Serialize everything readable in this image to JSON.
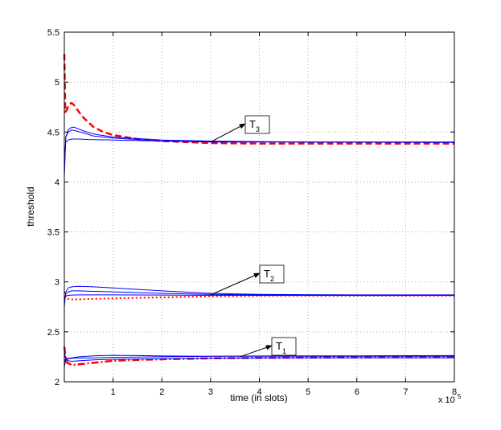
{
  "chart_data": {
    "type": "line",
    "title": "",
    "xlabel": "time (in slots)",
    "ylabel": "threshold",
    "x_multiplier_base": "x 10",
    "x_multiplier_exp": "5",
    "xlim": [
      0,
      8
    ],
    "ylim": [
      2,
      5.5
    ],
    "xticks": [
      "1",
      "2",
      "3",
      "4",
      "5",
      "6",
      "7",
      "8"
    ],
    "yticks": [
      "2",
      "2.5",
      "3",
      "3.5",
      "4",
      "4.5",
      "5",
      "5.5"
    ],
    "grid": true,
    "annotations": [
      {
        "main": "T",
        "sub": "3",
        "arrow_to": [
          3.0,
          4.4
        ]
      },
      {
        "main": "T",
        "sub": "2",
        "arrow_to": [
          3.0,
          2.87
        ]
      },
      {
        "main": "T",
        "sub": "1",
        "arrow_to": [
          3.6,
          2.25
        ]
      }
    ],
    "series": [
      {
        "color": "#ff0000",
        "style": "dashed",
        "width": 2.5,
        "x": [
          0.0,
          0.02,
          0.05,
          0.08,
          0.1,
          0.15,
          0.2,
          0.3,
          0.4,
          0.6,
          0.8,
          1.0,
          1.5,
          2.0,
          3.0,
          4.0,
          6.0,
          8.0
        ],
        "y": [
          5.28,
          4.7,
          4.72,
          4.76,
          4.78,
          4.79,
          4.77,
          4.7,
          4.64,
          4.55,
          4.5,
          4.47,
          4.43,
          4.41,
          4.39,
          4.385,
          4.385,
          4.385
        ]
      },
      {
        "color": "#0000ff",
        "style": "solid",
        "width": 1,
        "x": [
          0.0,
          0.03,
          0.08,
          0.12,
          0.18,
          0.25,
          0.4,
          0.6,
          1.0,
          2.0,
          3.0,
          5.0,
          8.0
        ],
        "y": [
          4.05,
          4.45,
          4.52,
          4.54,
          4.55,
          4.54,
          4.51,
          4.48,
          4.45,
          4.42,
          4.41,
          4.4,
          4.4
        ]
      },
      {
        "color": "#0000ff",
        "style": "solid",
        "width": 1,
        "x": [
          0.0,
          0.03,
          0.08,
          0.15,
          0.25,
          0.4,
          0.6,
          1.0,
          2.0,
          3.0,
          5.0,
          8.0
        ],
        "y": [
          4.1,
          4.45,
          4.5,
          4.52,
          4.51,
          4.49,
          4.46,
          4.44,
          4.41,
          4.405,
          4.4,
          4.4
        ]
      },
      {
        "color": "#0000ff",
        "style": "solid",
        "width": 1,
        "x": [
          0.0,
          0.03,
          0.08,
          0.15,
          0.3,
          0.5,
          1.0,
          2.0,
          3.0,
          5.0,
          8.0
        ],
        "y": [
          4.2,
          4.4,
          4.42,
          4.43,
          4.43,
          4.425,
          4.42,
          4.41,
          4.4,
          4.4,
          4.395
        ]
      },
      {
        "color": "#ff0000",
        "style": "dotted",
        "width": 2,
        "x": [
          0.0,
          0.03,
          0.08,
          0.15,
          0.3,
          0.6,
          1.0,
          2.0,
          3.0,
          4.0,
          6.0,
          8.0
        ],
        "y": [
          2.9,
          2.84,
          2.83,
          2.825,
          2.825,
          2.83,
          2.835,
          2.845,
          2.855,
          2.86,
          2.862,
          2.862
        ]
      },
      {
        "color": "#0000ff",
        "style": "solid",
        "width": 1,
        "x": [
          0.0,
          0.03,
          0.08,
          0.15,
          0.3,
          0.6,
          1.0,
          2.0,
          3.0,
          4.0,
          6.0,
          8.0
        ],
        "y": [
          2.75,
          2.9,
          2.94,
          2.95,
          2.955,
          2.95,
          2.94,
          2.91,
          2.885,
          2.875,
          2.87,
          2.87
        ]
      },
      {
        "color": "#0000ff",
        "style": "solid",
        "width": 1,
        "x": [
          0.0,
          0.03,
          0.08,
          0.15,
          0.3,
          0.6,
          1.0,
          2.0,
          3.0,
          4.0,
          6.0,
          8.0
        ],
        "y": [
          2.8,
          2.88,
          2.9,
          2.91,
          2.91,
          2.905,
          2.9,
          2.885,
          2.875,
          2.87,
          2.868,
          2.866
        ]
      },
      {
        "color": "#0000ff",
        "style": "solid",
        "width": 1,
        "x": [
          0.0,
          0.03,
          0.08,
          0.15,
          0.3,
          0.6,
          1.0,
          2.0,
          3.0,
          4.0,
          6.0,
          8.0
        ],
        "y": [
          2.85,
          2.86,
          2.865,
          2.868,
          2.87,
          2.87,
          2.87,
          2.868,
          2.866,
          2.865,
          2.864,
          2.864
        ]
      },
      {
        "color": "#ff0000",
        "style": "dashdot",
        "width": 2.5,
        "x": [
          0.0,
          0.03,
          0.06,
          0.1,
          0.15,
          0.2,
          0.3,
          0.4,
          0.6,
          0.8,
          1.0,
          1.5,
          2.0,
          3.0,
          4.0,
          6.0,
          8.0
        ],
        "y": [
          2.35,
          2.22,
          2.19,
          2.18,
          2.17,
          2.17,
          2.175,
          2.18,
          2.19,
          2.2,
          2.21,
          2.22,
          2.225,
          2.235,
          2.24,
          2.245,
          2.25
        ]
      },
      {
        "color": "#0000ff",
        "style": "solid",
        "width": 1,
        "x": [
          0.0,
          0.03,
          0.08,
          0.15,
          0.3,
          0.6,
          1.0,
          2.0,
          3.0,
          4.0,
          6.0,
          8.0
        ],
        "y": [
          2.3,
          2.23,
          2.21,
          2.205,
          2.21,
          2.22,
          2.225,
          2.23,
          2.235,
          2.238,
          2.24,
          2.24
        ]
      },
      {
        "color": "#0000ff",
        "style": "solid",
        "width": 1,
        "x": [
          0.0,
          0.03,
          0.08,
          0.15,
          0.3,
          0.6,
          1.0,
          2.0,
          3.0,
          4.0,
          6.0,
          8.0
        ],
        "y": [
          2.15,
          2.22,
          2.23,
          2.235,
          2.238,
          2.24,
          2.245,
          2.25,
          2.255,
          2.258,
          2.26,
          2.262
        ]
      },
      {
        "color": "#0000ff",
        "style": "solid",
        "width": 1,
        "x": [
          0.0,
          0.03,
          0.08,
          0.15,
          0.3,
          0.6,
          1.0,
          1.5,
          2.0,
          3.0,
          4.0,
          6.0,
          8.0
        ],
        "y": [
          2.2,
          2.23,
          2.235,
          2.24,
          2.25,
          2.26,
          2.265,
          2.262,
          2.258,
          2.255,
          2.255,
          2.255,
          2.255
        ]
      }
    ]
  }
}
